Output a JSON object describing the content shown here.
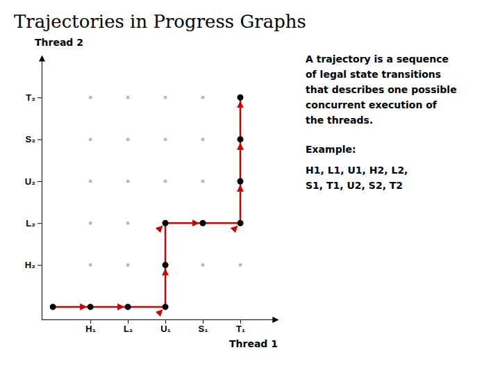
{
  "chart_data": {
    "type": "line",
    "title": "Trajectories in Progress Graphs",
    "x_label": "Thread 1",
    "y_label": "Thread 2",
    "x": [
      0,
      1,
      2,
      3,
      3,
      3,
      4,
      5,
      5,
      5,
      5
    ],
    "values": [
      0,
      0,
      0,
      0,
      1,
      2,
      2,
      2,
      3,
      4,
      5
    ],
    "color": "#CC0000",
    "marker": "circle",
    "xlim": [
      -0.3,
      6
    ],
    "ylim": [
      -0.3,
      6
    ],
    "xticks": [
      {
        "value": 1,
        "label": "H₁"
      },
      {
        "value": 2,
        "label": "L₁"
      },
      {
        "value": 3,
        "label": "U₁"
      },
      {
        "value": 4,
        "label": "S₁"
      },
      {
        "value": 5,
        "label": "T₁"
      }
    ],
    "yticks": [
      {
        "value": 1,
        "label": "H₂"
      },
      {
        "value": 2,
        "label": "L₂"
      },
      {
        "value": 3,
        "label": "U₂"
      },
      {
        "value": 4,
        "label": "S₂"
      },
      {
        "value": 5,
        "label": "T₂"
      }
    ],
    "grid": true,
    "annotations": [
      "A trajectory is a sequence\nof legal state transitions\nthat describes one possible\nconcurrent execution of\nthe threads.",
      "Example:",
      "H1, L1, U1, H2, L2,\nS1, T1, U2, S2, T2"
    ]
  }
}
